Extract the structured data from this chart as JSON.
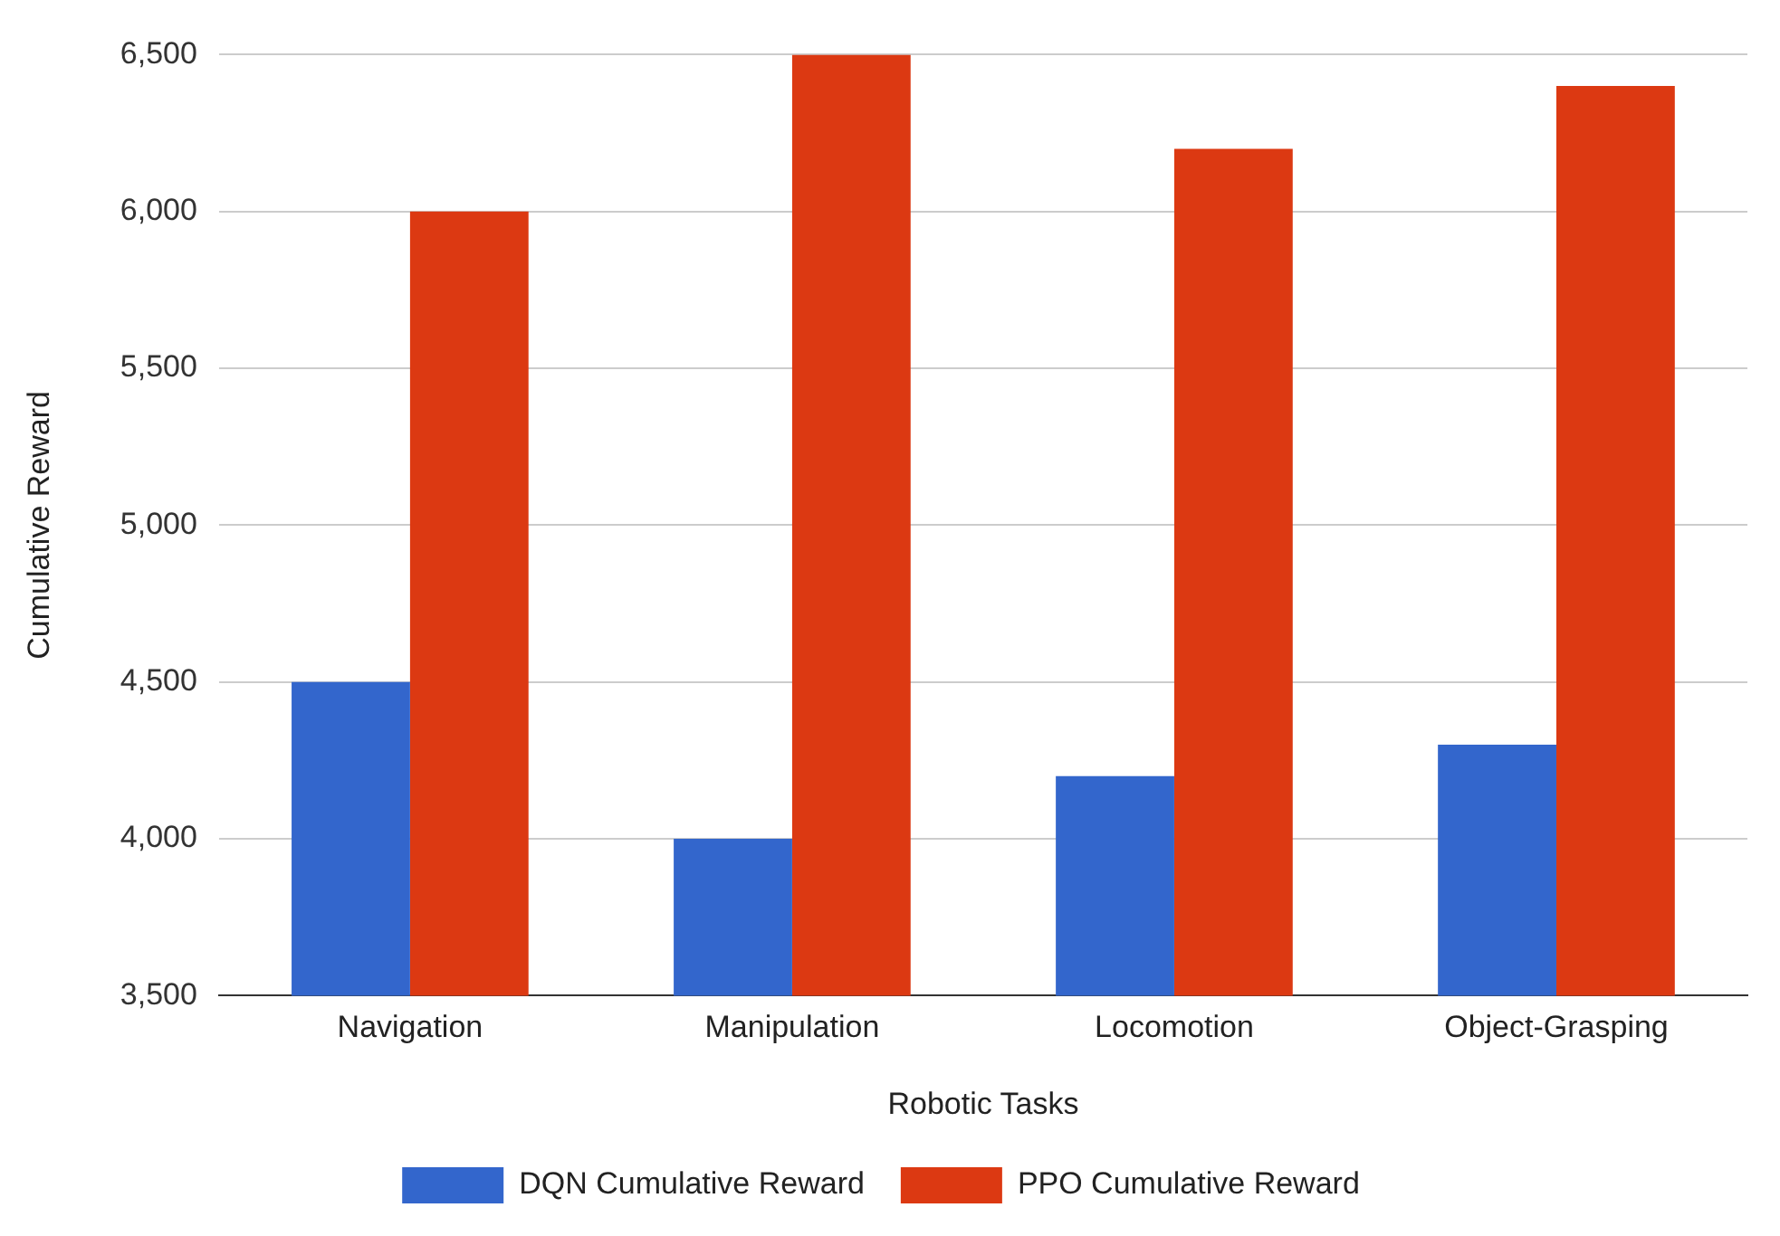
{
  "chart_data": {
    "type": "bar",
    "xlabel": "Robotic Tasks",
    "ylabel": "Cumulative Reward",
    "categories": [
      "Navigation",
      "Manipulation",
      "Locomotion",
      "Object-Grasping"
    ],
    "series": [
      {
        "name": "DQN Cumulative Reward",
        "color": "#3366cc",
        "values": [
          4500,
          4000,
          4200,
          4300
        ]
      },
      {
        "name": "PPO Cumulative Reward",
        "color": "#dc3912",
        "values": [
          6000,
          6500,
          6200,
          6400
        ]
      }
    ],
    "ylim": [
      3500,
      6500
    ],
    "yticks": [
      {
        "value": 3500,
        "label": "3,500"
      },
      {
        "value": 4000,
        "label": "4,000"
      },
      {
        "value": 4500,
        "label": "4,500"
      },
      {
        "value": 5000,
        "label": "5,000"
      },
      {
        "value": 5500,
        "label": "5,500"
      },
      {
        "value": 6000,
        "label": "6,000"
      },
      {
        "value": 6500,
        "label": "6,500"
      }
    ],
    "grid": "y",
    "legend": "bottom"
  }
}
